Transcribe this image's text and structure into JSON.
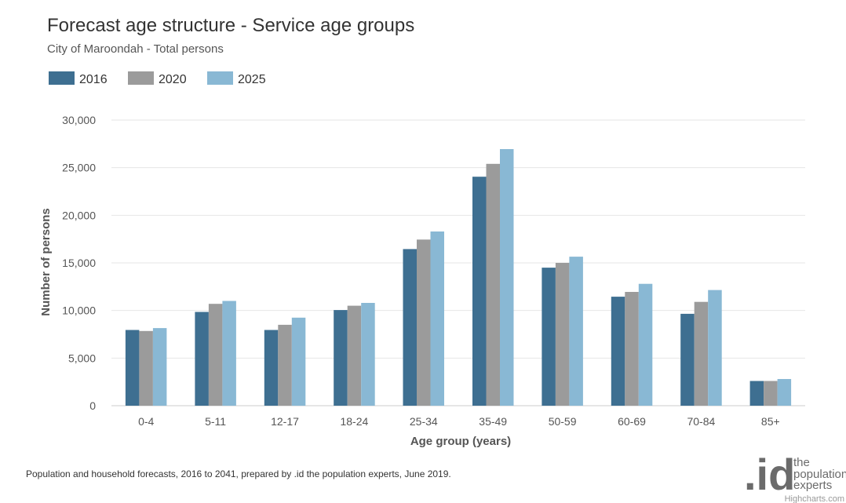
{
  "chart_data": {
    "type": "bar",
    "title": "Forecast age structure - Service age groups",
    "subtitle": "City of Maroondah - Total persons",
    "xlabel": "Age group (years)",
    "ylabel": "Number of persons",
    "ylim": [
      0,
      30000
    ],
    "yticks": [
      "0",
      "5,000",
      "10,000",
      "15,000",
      "20,000",
      "25,000",
      "30,000"
    ],
    "categories": [
      "0-4",
      "5-11",
      "12-17",
      "18-24",
      "25-34",
      "35-49",
      "50-59",
      "60-69",
      "70-84",
      "85+"
    ],
    "series": [
      {
        "name": "2016",
        "color": "#3e6f91",
        "values": [
          7950,
          9850,
          7950,
          10050,
          16450,
          24050,
          14500,
          11450,
          9650,
          2600
        ]
      },
      {
        "name": "2020",
        "color": "#9b9b9b",
        "values": [
          7850,
          10700,
          8500,
          10500,
          17450,
          25400,
          15000,
          11950,
          10900,
          2600
        ]
      },
      {
        "name": "2025",
        "color": "#89b8d4",
        "values": [
          8150,
          11000,
          9250,
          10800,
          18300,
          26950,
          15650,
          12800,
          12150,
          2800
        ]
      }
    ],
    "legend_position": "top-left",
    "grid": true
  },
  "footer": {
    "source": "Population and household forecasts, 2016 to 2041, prepared by .id the population experts, June 2019.",
    "logo_mark": ".id",
    "logo_lines": [
      "the",
      "population",
      "experts"
    ],
    "credits": "Highcharts.com"
  }
}
